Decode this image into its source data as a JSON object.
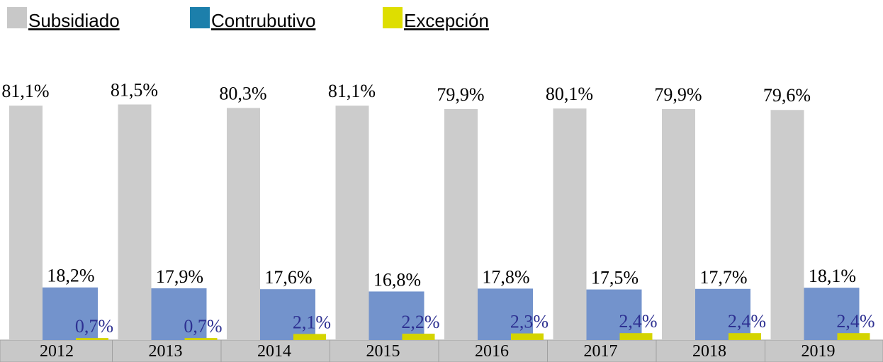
{
  "chart_data": {
    "type": "bar",
    "categories": [
      "2012",
      "2013",
      "2014",
      "2015",
      "2016",
      "2017",
      "2018",
      "2019"
    ],
    "series": [
      {
        "name": "Subsidiado",
        "color": "#cccccc",
        "legend_color": "#c8c8c8",
        "label_color": "#000000",
        "values": [
          81.1,
          81.5,
          80.3,
          81.1,
          79.9,
          80.1,
          79.9,
          79.6
        ],
        "value_labels": [
          "81,1%",
          "81,5%",
          "80,3%",
          "81,1%",
          "79,9%",
          "80,1%",
          "79,9%",
          "79,6%"
        ]
      },
      {
        "name": "Contrubutivo",
        "color": "#7393cc",
        "legend_color": "#1c7fab",
        "label_color": "#000000",
        "values": [
          18.2,
          17.9,
          17.6,
          16.8,
          17.8,
          17.5,
          17.7,
          18.1
        ],
        "value_labels": [
          "18,2%",
          "17,9%",
          "17,6%",
          "16,8%",
          "17,8%",
          "17,5%",
          "17,7%",
          "18,1%"
        ]
      },
      {
        "name": "Excepción",
        "color": "#d4d400",
        "legend_color": "#dede00",
        "label_color": "#2e3192",
        "values": [
          0.7,
          0.7,
          2.1,
          2.2,
          2.3,
          2.4,
          2.4,
          2.4
        ],
        "value_labels": [
          "0,7%",
          "0,7%",
          "2,1%",
          "2,2%",
          "2,3%",
          "2,4%",
          "2,4%",
          "2,4%"
        ]
      }
    ],
    "ylim": [
      0,
      100
    ]
  }
}
